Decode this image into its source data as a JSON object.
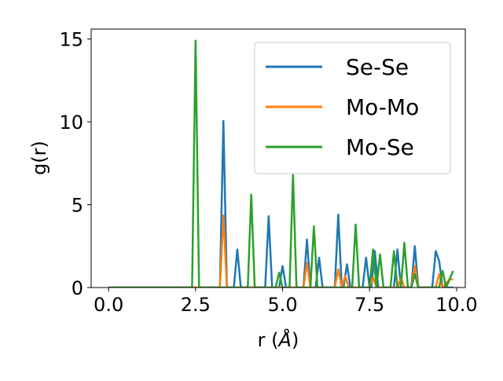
{
  "chart_data": {
    "type": "line",
    "xlabel_plain": "r (",
    "xlabel_italic": "Å",
    "xlabel_end": ")",
    "ylabel": "g(r)",
    "xlim": [
      -0.5,
      10.25
    ],
    "ylim": [
      0,
      15.6
    ],
    "xticks": [
      0.0,
      2.5,
      5.0,
      7.5,
      10.0
    ],
    "xtick_labels": [
      "0.0",
      "2.5",
      "5.0",
      "7.5",
      "10.0"
    ],
    "yticks": [
      0,
      5,
      10,
      15
    ],
    "ytick_labels": [
      "0",
      "5",
      "10",
      "15"
    ],
    "legend_position": "upper-right",
    "grid": false,
    "series": [
      {
        "name": "Se-Se",
        "color": "#1f77b4",
        "points": [
          [
            0.0,
            0
          ],
          [
            3.2,
            0
          ],
          [
            3.3,
            10.05
          ],
          [
            3.4,
            0
          ],
          [
            3.6,
            0
          ],
          [
            3.7,
            2.3
          ],
          [
            3.8,
            0
          ],
          [
            4.5,
            0
          ],
          [
            4.6,
            4.3
          ],
          [
            4.7,
            0
          ],
          [
            4.9,
            0
          ],
          [
            5.0,
            1.3
          ],
          [
            5.1,
            0
          ],
          [
            5.6,
            0
          ],
          [
            5.7,
            2.9
          ],
          [
            5.8,
            0
          ],
          [
            5.95,
            0
          ],
          [
            6.05,
            1.8
          ],
          [
            6.15,
            0
          ],
          [
            6.5,
            0
          ],
          [
            6.6,
            4.4
          ],
          [
            6.7,
            0
          ],
          [
            6.75,
            0
          ],
          [
            6.85,
            1.4
          ],
          [
            6.95,
            0
          ],
          [
            7.3,
            0
          ],
          [
            7.4,
            1.8
          ],
          [
            7.5,
            0
          ],
          [
            7.55,
            0
          ],
          [
            7.65,
            2.2
          ],
          [
            7.75,
            0
          ],
          [
            8.2,
            0
          ],
          [
            8.3,
            2.3
          ],
          [
            8.4,
            0
          ],
          [
            8.7,
            0
          ],
          [
            8.8,
            2.5
          ],
          [
            8.9,
            0
          ],
          [
            9.3,
            0
          ],
          [
            9.4,
            2.2
          ],
          [
            9.5,
            1.6
          ],
          [
            9.6,
            0
          ],
          [
            9.9,
            0
          ]
        ]
      },
      {
        "name": "Mo-Mo",
        "color": "#ff7f0e",
        "points": [
          [
            0.0,
            0
          ],
          [
            3.2,
            0
          ],
          [
            3.3,
            4.35
          ],
          [
            3.4,
            0
          ],
          [
            5.6,
            0
          ],
          [
            5.7,
            1.5
          ],
          [
            5.8,
            0
          ],
          [
            6.5,
            0
          ],
          [
            6.6,
            1.1
          ],
          [
            6.7,
            0
          ],
          [
            6.8,
            0.7
          ],
          [
            6.9,
            0
          ],
          [
            7.5,
            0
          ],
          [
            7.6,
            0.6
          ],
          [
            7.7,
            0
          ],
          [
            8.3,
            0
          ],
          [
            8.4,
            0.6
          ],
          [
            8.5,
            0
          ],
          [
            8.7,
            0
          ],
          [
            8.8,
            1.3
          ],
          [
            8.9,
            0
          ],
          [
            9.4,
            0
          ],
          [
            9.5,
            0.8
          ],
          [
            9.6,
            0
          ],
          [
            9.8,
            0.5
          ],
          [
            9.9,
            0.5
          ]
        ]
      },
      {
        "name": "Mo-Se",
        "color": "#2ca02c",
        "points": [
          [
            0.0,
            0
          ],
          [
            2.4,
            0
          ],
          [
            2.5,
            14.9
          ],
          [
            2.6,
            0
          ],
          [
            4.0,
            0
          ],
          [
            4.1,
            5.6
          ],
          [
            4.2,
            0
          ],
          [
            4.8,
            0
          ],
          [
            4.9,
            0.9
          ],
          [
            5.0,
            0
          ],
          [
            5.2,
            0
          ],
          [
            5.3,
            6.8
          ],
          [
            5.4,
            0
          ],
          [
            5.8,
            0
          ],
          [
            5.9,
            3.7
          ],
          [
            6.0,
            0
          ],
          [
            7.0,
            0
          ],
          [
            7.1,
            3.8
          ],
          [
            7.2,
            0
          ],
          [
            7.5,
            0
          ],
          [
            7.6,
            2.3
          ],
          [
            7.7,
            0
          ],
          [
            7.8,
            2.0
          ],
          [
            7.9,
            0
          ],
          [
            8.1,
            0
          ],
          [
            8.2,
            2.2
          ],
          [
            8.3,
            0
          ],
          [
            8.4,
            0
          ],
          [
            8.5,
            2.7
          ],
          [
            8.6,
            0
          ],
          [
            8.7,
            0
          ],
          [
            8.8,
            0.8
          ],
          [
            8.9,
            0
          ],
          [
            9.5,
            0
          ],
          [
            9.6,
            1.0
          ],
          [
            9.7,
            0
          ],
          [
            9.9,
            1.0
          ]
        ]
      }
    ]
  }
}
